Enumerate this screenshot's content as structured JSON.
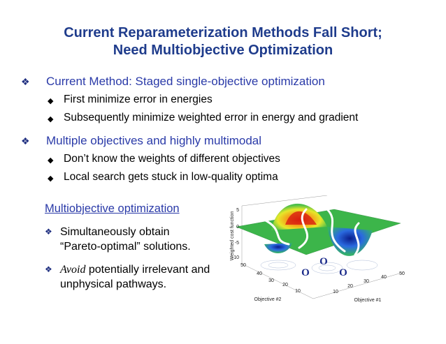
{
  "slide": {
    "title": [
      "Current Reparameterization Methods Fall Short;",
      "Need Multiobjective Optimization"
    ],
    "bullets": [
      {
        "text": "Current Method: Staged single-objective optimization",
        "sub": [
          "First minimize error in energies",
          "Subsequently minimize weighted error in energy and gradient"
        ]
      },
      {
        "text": "Multiple objectives and highly multimodal",
        "sub": [
          "Don’t know the weights of different objectives",
          "Local search gets stuck in low-quality optima"
        ]
      }
    ],
    "box": {
      "heading": "Multiobjective optimization",
      "items": [
        {
          "text": "Simultaneously obtain “Pareto-optimal” solutions."
        },
        {
          "emphasis": "Avoid",
          "text": " potentially irrelevant and unphysical pathways."
        }
      ]
    },
    "figure": {
      "z_label": "Weighted cost function",
      "z_ticks": [
        5,
        0,
        -5,
        -10
      ],
      "y_label": "Objective #2",
      "y_ticks": [
        50,
        40,
        30,
        20,
        10
      ],
      "x_label": "Objective #1",
      "x_ticks": [
        10,
        20,
        30,
        40,
        50
      ],
      "markers": [
        "O",
        "O",
        "O"
      ]
    }
  }
}
